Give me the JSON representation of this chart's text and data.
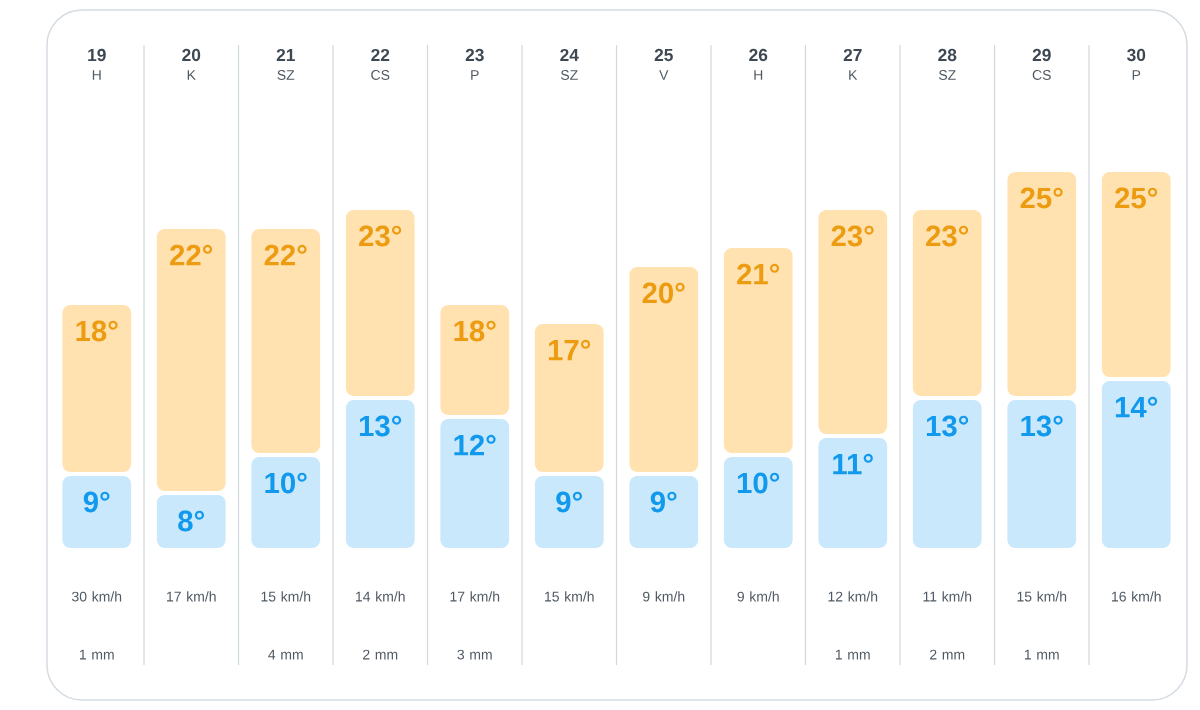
{
  "chart_data": {
    "type": "bar",
    "stacked": true,
    "categories": [
      "19",
      "20",
      "21",
      "22",
      "23",
      "24",
      "25",
      "26",
      "27",
      "28",
      "29",
      "30"
    ],
    "series": [
      {
        "color": "#c9e8fb",
        "values": [
          9,
          8,
          10,
          13,
          12,
          9,
          9,
          10,
          11,
          13,
          13,
          14
        ],
        "value_labels": [
          "9°",
          "8°",
          "10°",
          "13°",
          "12°",
          "9°",
          "9°",
          "10°",
          "11°",
          "13°",
          "13°",
          "14°"
        ]
      },
      {
        "color": "#ffe2b0",
        "values": [
          9,
          14,
          12,
          10,
          6,
          8,
          11,
          11,
          12,
          10,
          12,
          11
        ]
      }
    ],
    "totals": [
      "18°",
      "22°",
      "22°",
      "23°",
      "18°",
      "17°",
      "20°",
      "21°",
      "23°",
      "23°",
      "25°",
      "25°"
    ],
    "ylim": [
      5,
      25
    ],
    "tick_labels": "x",
    "grid": "x",
    "annotations": [
      "H",
      "K",
      "SZ",
      "CS",
      "P",
      "SZ",
      "V",
      "H",
      "K",
      "SZ",
      "CS",
      "P",
      "30 km/h 1 mm",
      "17 km/h",
      "15 km/h 4 mm",
      "14 km/h 2 mm",
      "17 km/h 3 mm",
      "15 km/h",
      "9 km/h",
      "9 km/h",
      "12 km/h 1 mm",
      "11 km/h 2 mm",
      "15 km/h 1 mm",
      "16 km/h"
    ]
  }
}
